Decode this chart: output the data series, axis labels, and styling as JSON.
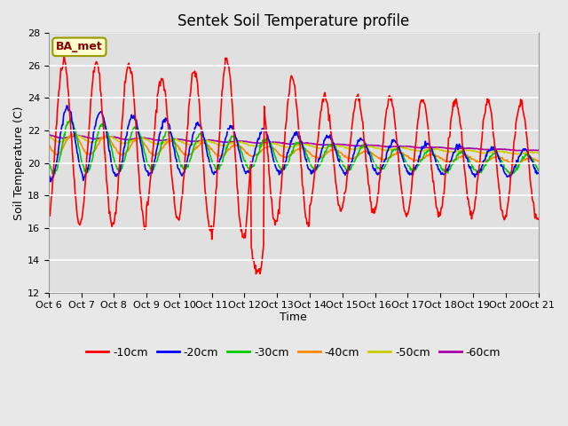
{
  "title": "Sentek Soil Temperature profile",
  "xlabel": "Time",
  "ylabel": "Soil Temperature (C)",
  "ylim": [
    12,
    28
  ],
  "yticks": [
    12,
    14,
    16,
    18,
    20,
    22,
    24,
    26,
    28
  ],
  "annotation": "BA_met",
  "background_color": "#e8e8e8",
  "plot_bg_color": "#e0e0e0",
  "series": {
    "-10cm": {
      "color": "#ff0000",
      "lw": 1.2
    },
    "-20cm": {
      "color": "#0000ff",
      "lw": 1.2
    },
    "-30cm": {
      "color": "#00cc00",
      "lw": 1.2
    },
    "-40cm": {
      "color": "#ff8800",
      "lw": 1.2
    },
    "-50cm": {
      "color": "#cccc00",
      "lw": 1.2
    },
    "-60cm": {
      "color": "#aa00aa",
      "lw": 1.2
    }
  },
  "xtick_labels": [
    "Oct 6",
    "Oct 7",
    "Oct 8",
    "Oct 9",
    "Oct 10",
    "Oct 11",
    "Oct 12",
    "Oct 13",
    "Oct 14",
    "Oct 15",
    "Oct 16",
    "Oct 17",
    "Oct 18",
    "Oct 19",
    "Oct 20",
    "Oct 21"
  ],
  "title_fontsize": 12,
  "axis_fontsize": 8,
  "label_fontsize": 9,
  "legend_fontsize": 9
}
